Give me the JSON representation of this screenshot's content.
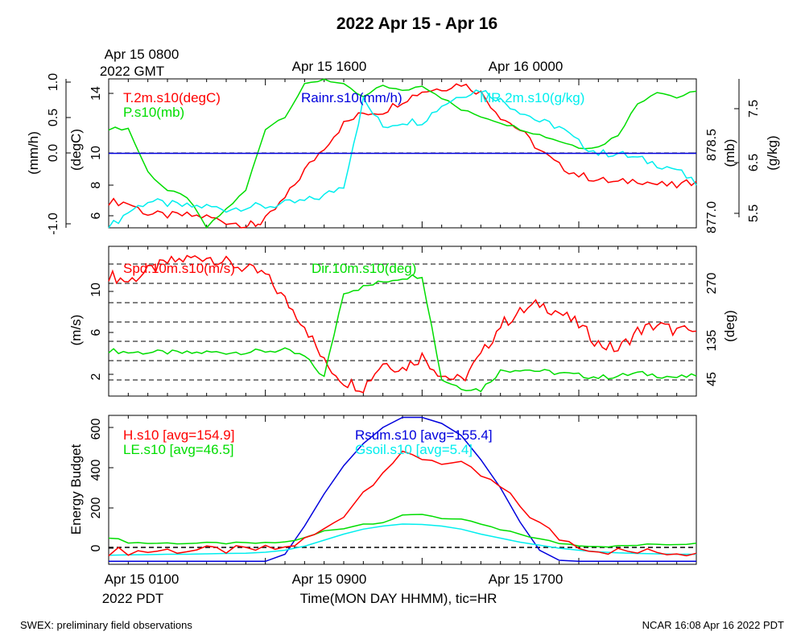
{
  "figure": {
    "title": "2022 Apr 15 - Apr 16",
    "top_axis": {
      "first_label_line1": "Apr 15 0800",
      "first_label_line2": "2022 GMT",
      "ticks": [
        "Apr 15 1600",
        "Apr 16 0000"
      ]
    },
    "bottom_axis": {
      "first_label": "Apr 15 0100",
      "first_label_line2": "2022 PDT",
      "ticks": [
        "Apr 15 0900",
        "Apr 15 1700"
      ],
      "xlabel": "Time(MON DAY HHMM), tic=HR"
    },
    "footer_left": "SWEX: preliminary field observations",
    "footer_right": "NCAR 16:08 Apr 16 2022 PDT"
  },
  "colors": {
    "red": "#ff0000",
    "green": "#00dd00",
    "blue": "#0000dd",
    "cyan": "#00eeee",
    "black": "#000000"
  },
  "chart_data": [
    {
      "type": "line",
      "x_unit": "hours after Apr 15 0100 PDT",
      "xlim": [
        0,
        30
      ],
      "left_axes": [
        {
          "label": "(mm/h)",
          "ticks": [
            "1.0",
            "0.5",
            "0.0",
            "-1.0"
          ]
        },
        {
          "label": "(degC)",
          "ticks": [
            "14",
            "10",
            "8",
            "6"
          ]
        }
      ],
      "right_axes": [
        {
          "label": "(mb)",
          "ticks": [
            "878.5",
            "877.0"
          ]
        },
        {
          "label": "(g/kg)",
          "ticks": [
            "7.5",
            "6.5",
            "5.5"
          ]
        }
      ],
      "ylim_degC": [
        5.3,
        14.9
      ],
      "ylim_mb": [
        876.8,
        879.2
      ],
      "ylim_gkg": [
        5.4,
        8.2
      ],
      "series": [
        {
          "name": "T.2m.s10(degC)",
          "color": "#ff0000",
          "unit": "degC",
          "x": [
            0,
            1,
            2,
            3,
            4,
            5,
            6,
            7,
            7.5,
            8,
            9,
            10,
            11,
            12,
            13,
            14,
            15,
            16,
            17,
            18,
            19,
            20,
            21,
            22,
            23,
            24,
            25,
            26,
            27,
            28,
            29,
            30
          ],
          "y": [
            7.0,
            6.9,
            6.2,
            6.1,
            6.1,
            6.0,
            5.7,
            5.5,
            5.5,
            5.8,
            7.2,
            9.0,
            10.5,
            12.0,
            12.7,
            12.8,
            13.5,
            14.1,
            14.3,
            14.6,
            14.0,
            12.5,
            11.6,
            10.3,
            9.3,
            8.7,
            8.4,
            8.2,
            8.4,
            8.1,
            8.0,
            8.3
          ]
        },
        {
          "name": "P.s10(mb)",
          "color": "#00dd00",
          "unit": "mb",
          "x": [
            0,
            1,
            2,
            3,
            4,
            5,
            6,
            7,
            8,
            9,
            10,
            11,
            12,
            13,
            14,
            15,
            16,
            17,
            18,
            19,
            20,
            21,
            22,
            23,
            24,
            25,
            26,
            27,
            28,
            29,
            30
          ],
          "y": [
            878.4,
            878.4,
            877.7,
            877.4,
            877.3,
            876.8,
            877.1,
            877.4,
            878.4,
            878.6,
            879.1,
            879.2,
            879.1,
            878.9,
            879.1,
            879.0,
            879.1,
            878.9,
            878.7,
            878.6,
            878.5,
            878.4,
            878.3,
            878.2,
            878.1,
            878.1,
            878.3,
            878.8,
            879.0,
            878.9,
            879.0
          ]
        },
        {
          "name": "MR.2m.s10(g/kg)",
          "color": "#00eeee",
          "unit": "g/kg",
          "x": [
            0,
            1,
            2,
            3,
            4,
            5,
            6,
            7,
            8,
            9,
            10,
            11,
            12,
            13,
            14,
            15,
            16,
            17,
            18,
            19,
            20,
            21,
            22,
            23,
            24,
            25,
            26,
            27,
            28,
            29,
            30
          ],
          "y": [
            5.4,
            5.7,
            5.9,
            5.85,
            5.8,
            5.8,
            5.75,
            5.8,
            5.8,
            5.85,
            5.9,
            6.0,
            6.2,
            7.8,
            7.3,
            7.4,
            7.4,
            7.7,
            7.9,
            8.0,
            7.8,
            7.6,
            7.4,
            7.3,
            7.0,
            6.8,
            6.8,
            6.7,
            6.6,
            6.5,
            6.2
          ]
        },
        {
          "name": "Rainr.s10(mm/h)",
          "color": "#0000dd",
          "unit": "mm/h",
          "x": [
            0,
            30
          ],
          "y": [
            0.0,
            0.0
          ]
        }
      ]
    },
    {
      "type": "line",
      "x_unit": "hours after Apr 15 0100 PDT",
      "xlim": [
        0,
        30
      ],
      "left_axis": {
        "label": "(m/s)",
        "ticks": [
          "10",
          "6",
          "2"
        ]
      },
      "right_axis": {
        "label": "(deg)",
        "ticks": [
          "270",
          "135",
          "45"
        ]
      },
      "ylim": [
        0.8,
        12.8
      ],
      "ylim_deg": [
        0,
        360
      ],
      "series": [
        {
          "name": "Spd.10m.s10(m/s)",
          "color": "#ff0000",
          "unit": "m/s",
          "x": [
            0,
            1,
            2,
            3,
            4,
            5,
            6,
            7,
            8,
            9,
            10,
            11,
            12,
            13,
            14,
            15,
            16,
            17,
            18,
            19,
            20,
            21,
            22,
            23,
            24,
            25,
            26,
            27,
            28,
            29,
            30
          ],
          "y": [
            10.5,
            10.0,
            10.8,
            11.5,
            11.8,
            12.0,
            11.5,
            11.0,
            10.5,
            8.5,
            6.5,
            3.5,
            2.0,
            1.5,
            3.5,
            3.0,
            4.0,
            2.5,
            2.0,
            4.0,
            6.5,
            7.5,
            8.2,
            7.5,
            6.5,
            5.0,
            4.5,
            6.0,
            6.5,
            6.0,
            6.0
          ]
        },
        {
          "name": "Dir.10m.s10(deg)",
          "color": "#00dd00",
          "unit": "deg",
          "x": [
            0,
            1,
            2,
            3,
            4,
            5,
            6,
            7,
            8,
            9,
            10,
            11,
            12,
            13,
            14,
            15,
            16,
            17,
            18,
            19,
            20,
            21,
            22,
            23,
            24,
            25,
            26,
            27,
            28,
            29,
            30
          ],
          "y": [
            110,
            105,
            105,
            105,
            103,
            105,
            105,
            106,
            108,
            110,
            95,
            45,
            250,
            262,
            275,
            285,
            290,
            40,
            20,
            15,
            60,
            65,
            60,
            55,
            50,
            45,
            48,
            55,
            50,
            45,
            48
          ]
        }
      ]
    },
    {
      "type": "line",
      "x_unit": "hours after Apr 15 0100 PDT",
      "xlim": [
        0,
        30
      ],
      "ylabel": "Energy Budget",
      "y_ticks": [
        "600",
        "400",
        "200",
        "0"
      ],
      "ylim": [
        -90,
        650
      ],
      "series": [
        {
          "name": "H.s10 [avg=154.9]",
          "color": "#ff0000",
          "x": [
            0,
            1,
            2,
            3,
            4,
            5,
            6,
            7,
            8,
            9,
            10,
            11,
            12,
            13,
            14,
            15,
            16,
            17,
            18,
            19,
            20,
            21,
            22,
            23,
            24,
            25,
            26,
            27,
            28,
            29,
            30
          ],
          "y": [
            -25,
            -25,
            -25,
            -20,
            -20,
            -20,
            -20,
            -20,
            -15,
            -10,
            30,
            80,
            160,
            270,
            380,
            450,
            440,
            420,
            400,
            350,
            290,
            200,
            110,
            40,
            5,
            -20,
            -25,
            -30,
            -30,
            -30,
            -35
          ]
        },
        {
          "name": "LE.s10 [avg=46.5]",
          "color": "#00dd00",
          "x": [
            0,
            1,
            2,
            3,
            4,
            5,
            6,
            7,
            8,
            9,
            10,
            11,
            12,
            13,
            14,
            15,
            16,
            17,
            18,
            19,
            20,
            21,
            22,
            23,
            24,
            25,
            26,
            27,
            28,
            29,
            30
          ],
          "y": [
            45,
            20,
            15,
            15,
            15,
            15,
            15,
            15,
            15,
            20,
            40,
            75,
            90,
            110,
            120,
            150,
            160,
            140,
            130,
            110,
            80,
            60,
            35,
            15,
            5,
            0,
            0,
            5,
            10,
            10,
            15
          ]
        },
        {
          "name": "Rsum.s10 [avg=155.4]",
          "color": "#0000dd",
          "x": [
            0,
            1,
            2,
            3,
            4,
            5,
            6,
            7,
            8,
            9,
            10,
            11,
            12,
            13,
            14,
            15,
            16,
            17,
            18,
            19,
            20,
            21,
            22,
            23,
            24,
            25,
            26,
            27,
            28,
            29,
            30
          ],
          "y": [
            -75,
            -75,
            -75,
            -75,
            -75,
            -75,
            -75,
            -75,
            -75,
            -40,
            100,
            260,
            400,
            510,
            590,
            640,
            640,
            610,
            550,
            430,
            290,
            120,
            -20,
            -70,
            -75,
            -75,
            -75,
            -75,
            -75,
            -75,
            -75
          ]
        },
        {
          "name": "Gsoil.s10 [avg=5.4]",
          "color": "#00eeee",
          "x": [
            0,
            1,
            2,
            3,
            4,
            5,
            6,
            7,
            8,
            9,
            10,
            11,
            12,
            13,
            14,
            15,
            16,
            17,
            18,
            19,
            20,
            21,
            22,
            23,
            24,
            25,
            26,
            27,
            28,
            29,
            30
          ],
          "y": [
            -45,
            -43,
            -42,
            -40,
            -40,
            -38,
            -36,
            -35,
            -30,
            -20,
            0,
            30,
            60,
            85,
            100,
            110,
            108,
            100,
            85,
            60,
            40,
            20,
            5,
            -10,
            -20,
            -28,
            -33,
            -36,
            -38,
            -40,
            -40
          ]
        }
      ]
    }
  ]
}
